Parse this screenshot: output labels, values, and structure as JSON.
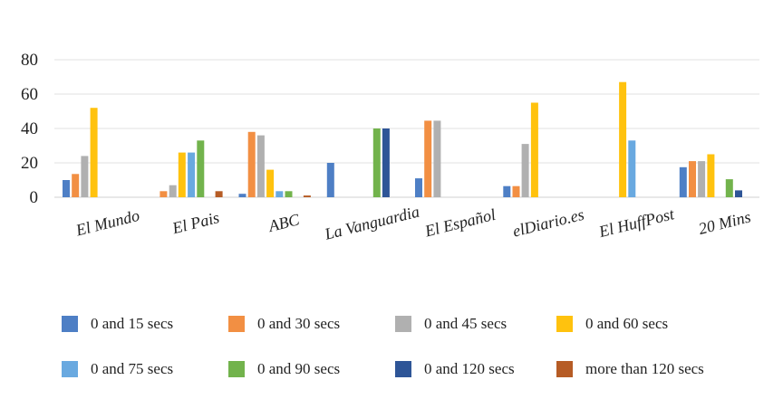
{
  "chart_data": {
    "type": "bar",
    "title": "",
    "xlabel": "",
    "ylabel": "",
    "ylim": [
      0,
      80
    ],
    "yticks": [
      0,
      20,
      40,
      60,
      80
    ],
    "grid": true,
    "legend_position": "bottom",
    "categories": [
      "El Mundo",
      "El Pais",
      "ABC",
      "La Vanguardia",
      "El Español",
      "elDiario.es",
      "El HuffPost",
      "20 Mins"
    ],
    "series": [
      {
        "name": "0 and 15 secs",
        "color": "#4e7fc5",
        "values": [
          10,
          0,
          2,
          20,
          11,
          6.5,
          0,
          17.5
        ]
      },
      {
        "name": "0 and 30 secs",
        "color": "#f28f43",
        "values": [
          13.5,
          3.5,
          38,
          0,
          44.5,
          6.5,
          0,
          21
        ]
      },
      {
        "name": "0 and 45 secs",
        "color": "#b0b0b0",
        "values": [
          24,
          7,
          36,
          0,
          44.5,
          31,
          0,
          21
        ]
      },
      {
        "name": "0 and 60 secs",
        "color": "#ffc20e",
        "values": [
          52,
          26,
          16,
          0,
          0,
          55,
          67,
          25
        ]
      },
      {
        "name": "0 and 75 secs",
        "color": "#69a9e0",
        "values": [
          0,
          26,
          3.5,
          0,
          0,
          0,
          33,
          0
        ]
      },
      {
        "name": "0 and 90 secs",
        "color": "#72b34c",
        "values": [
          0,
          33,
          3.5,
          40,
          0,
          0,
          0,
          10.5
        ]
      },
      {
        "name": "0 and 120 secs",
        "color": "#2e5597",
        "values": [
          0,
          0,
          0,
          40,
          0,
          0,
          0,
          4
        ]
      },
      {
        "name": "more than 120 secs",
        "color": "#b65c25",
        "values": [
          0,
          3.5,
          1,
          0,
          0,
          0,
          0,
          0
        ]
      }
    ]
  }
}
